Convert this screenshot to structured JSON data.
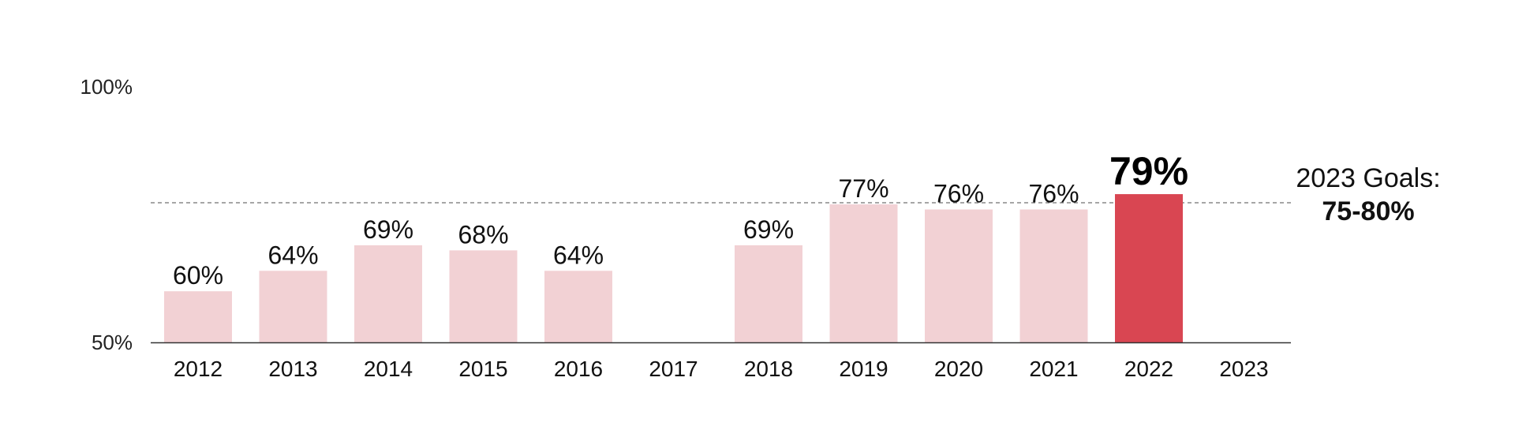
{
  "chart_data": {
    "type": "bar",
    "categories": [
      "2012",
      "2013",
      "2014",
      "2015",
      "2016",
      "2017",
      "2018",
      "2019",
      "2020",
      "2021",
      "2022",
      "2023"
    ],
    "values": [
      60,
      64,
      69,
      68,
      64,
      null,
      69,
      77,
      76,
      76,
      79,
      null
    ],
    "value_labels": [
      "60%",
      "64%",
      "69%",
      "68%",
      "64%",
      "",
      "69%",
      "77%",
      "76%",
      "76%",
      "79%",
      ""
    ],
    "highlight_category": "2022",
    "ylim": [
      50,
      100
    ],
    "y_ticks": [
      50,
      100
    ],
    "y_tick_labels": [
      "50%",
      "100%"
    ],
    "goal": {
      "label": "2023 Goals:",
      "value_label": "75-80%",
      "line_value": 77
    },
    "colors": {
      "bar": "#f2d1d4",
      "bar_highlight": "#d94652",
      "goal_line": "#888888",
      "axis": "#333333"
    },
    "grid": false,
    "title": "",
    "xlabel": "",
    "ylabel": ""
  }
}
